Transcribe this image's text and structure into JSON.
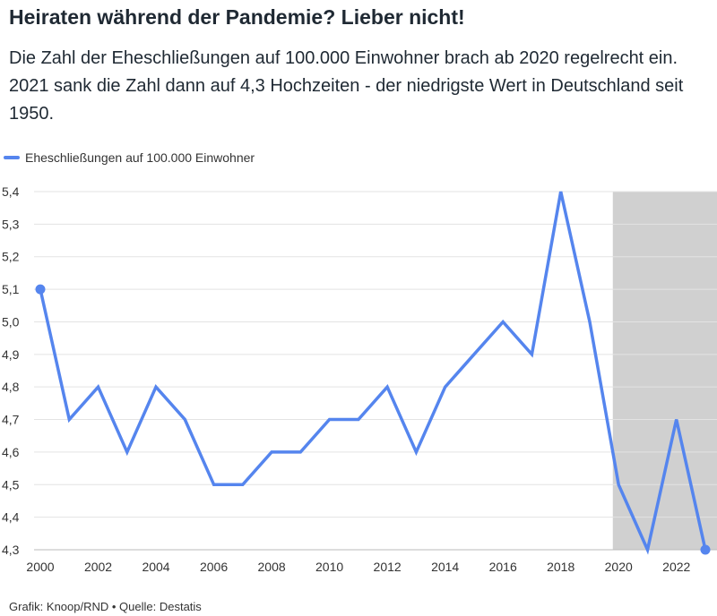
{
  "header": {
    "title": "Heiraten während der Pandemie? Lieber nicht!",
    "subtitle": "Die Zahl der Eheschließungen auf 100.000 Einwohner brach ab 2020 regelrecht ein. 2021 sank die Zahl dann auf 4,3 Hochzeiten - der niedrigste Wert in Deutschland seit 1950."
  },
  "legend": {
    "label": "Eheschließungen auf 100.000 Einwohner"
  },
  "footer": {
    "credit": "Grafik: Knoop/RND • Quelle: Destatis"
  },
  "colors": {
    "line": "#5585ee",
    "shade": "#d0d0d0",
    "grid": "#e3e3e3",
    "axis": "#bbbbbb"
  },
  "chart_data": {
    "type": "line",
    "x": [
      2000,
      2001,
      2002,
      2003,
      2004,
      2005,
      2006,
      2007,
      2008,
      2009,
      2010,
      2011,
      2012,
      2013,
      2014,
      2015,
      2016,
      2017,
      2018,
      2019,
      2020,
      2021,
      2022,
      2023
    ],
    "series": [
      {
        "name": "Eheschließungen auf 100.000 Einwohner",
        "values": [
          5.1,
          4.7,
          4.8,
          4.6,
          4.8,
          4.7,
          4.5,
          4.5,
          4.6,
          4.6,
          4.7,
          4.7,
          4.8,
          4.6,
          4.8,
          4.9,
          5.0,
          4.9,
          5.4,
          5.0,
          4.5,
          4.3,
          4.7,
          4.3
        ]
      }
    ],
    "xlim": [
      2000,
      2023
    ],
    "ylim": [
      4.3,
      5.4
    ],
    "x_ticks": [
      "2000",
      "2002",
      "2004",
      "2006",
      "2008",
      "2010",
      "2012",
      "2014",
      "2016",
      "2018",
      "2020",
      "2022"
    ],
    "y_ticks": [
      "4,3",
      "4,4",
      "4,5",
      "4,6",
      "4,7",
      "4,8",
      "4,9",
      "5,0",
      "5,1",
      "5,2",
      "5,3",
      "5,4"
    ],
    "shaded_range": [
      2019.8,
      2023.5
    ],
    "grid": true,
    "legend_position": "top-left",
    "endpoint_markers": true
  }
}
